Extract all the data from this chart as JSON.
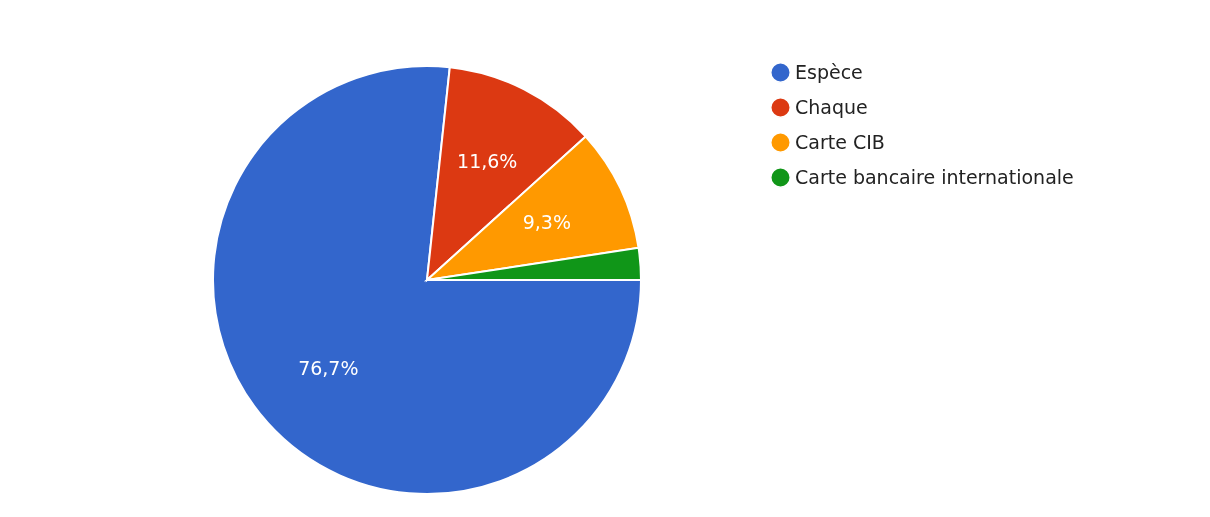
{
  "chart_data": {
    "type": "pie",
    "categories": [
      "Espèce",
      "Chaque",
      "Carte CIB",
      "Carte bancaire internationale"
    ],
    "values": [
      76.7,
      11.6,
      9.3,
      2.4
    ],
    "colors": [
      "#3366cc",
      "#dc3912",
      "#ff9900",
      "#109618"
    ],
    "value_labels": [
      "76,7%",
      "11,6%",
      "9,3%",
      null
    ],
    "legend": "top right"
  }
}
